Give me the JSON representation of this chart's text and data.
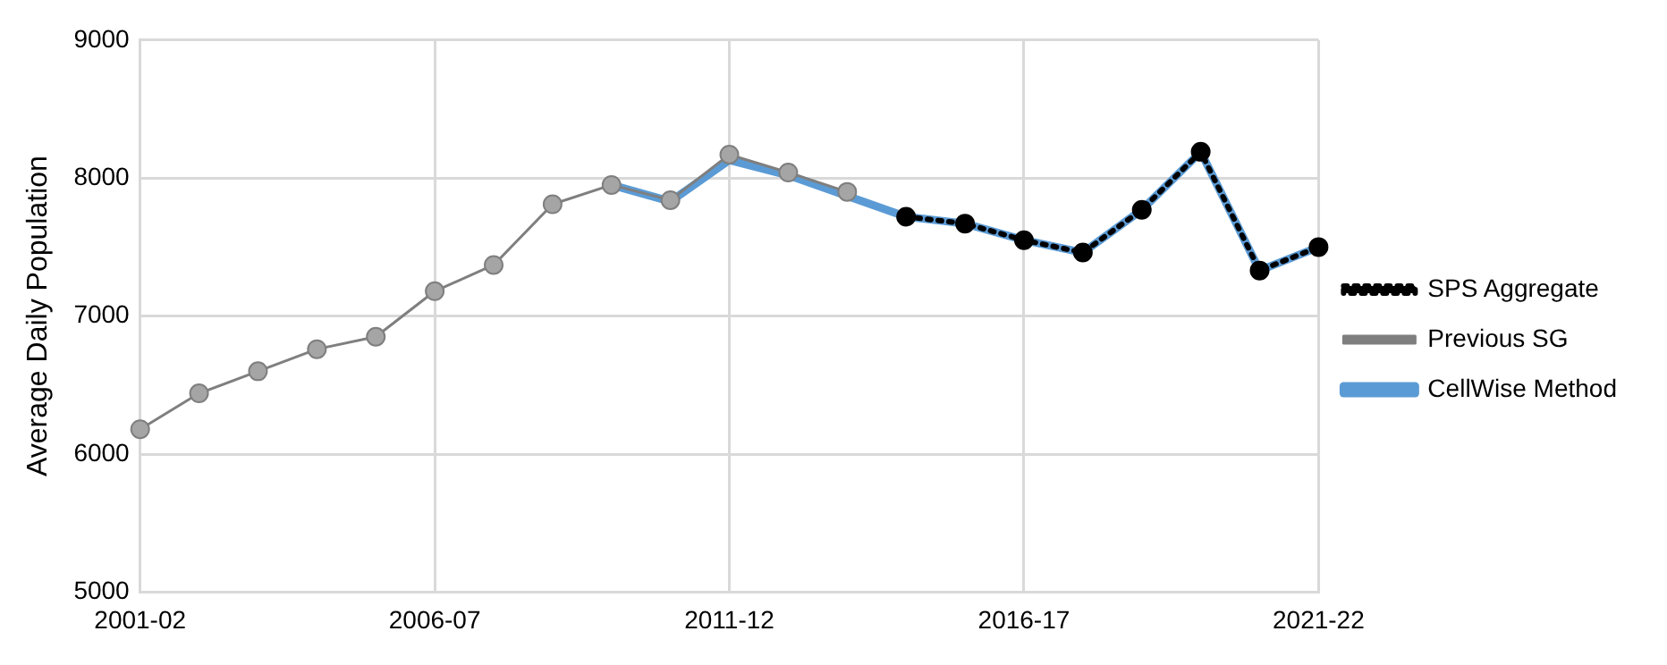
{
  "chart_data": {
    "type": "line",
    "ylabel": "Average Daily Population",
    "categories": [
      "2001-02",
      null,
      null,
      null,
      null,
      "2006-07",
      null,
      null,
      null,
      null,
      "2011-12",
      null,
      null,
      null,
      null,
      "2016-17",
      null,
      null,
      null,
      null,
      "2021-22"
    ],
    "series": [
      {
        "name": "CellWise Method",
        "color": "#5b9bd5",
        "marker": "none",
        "line_style": "solid",
        "values": [
          null,
          null,
          null,
          null,
          null,
          null,
          null,
          null,
          7950,
          7830,
          8130,
          8020,
          7870,
          7720,
          7670,
          7550,
          7460,
          7770,
          8190,
          7330,
          7500
        ]
      },
      {
        "name": "Previous SG",
        "color": "#7f7f7f",
        "marker": "circle",
        "line_style": "solid",
        "values": [
          6180,
          6440,
          6600,
          6760,
          6850,
          7180,
          7370,
          7810,
          7950,
          7840,
          8170,
          8040,
          7900,
          null,
          null,
          null,
          null,
          null,
          null,
          null,
          null
        ]
      },
      {
        "name": "SPS Aggregate",
        "color": "#000000",
        "marker": "circle",
        "line_style": "dotted",
        "values": [
          null,
          null,
          null,
          null,
          null,
          null,
          null,
          null,
          null,
          null,
          null,
          null,
          null,
          7720,
          7670,
          7550,
          7460,
          7770,
          8190,
          7330,
          7500
        ]
      }
    ],
    "ylim": [
      5000,
      9000
    ],
    "yticks": [
      5000,
      6000,
      7000,
      8000,
      9000
    ],
    "grid": true,
    "legend": "right"
  }
}
